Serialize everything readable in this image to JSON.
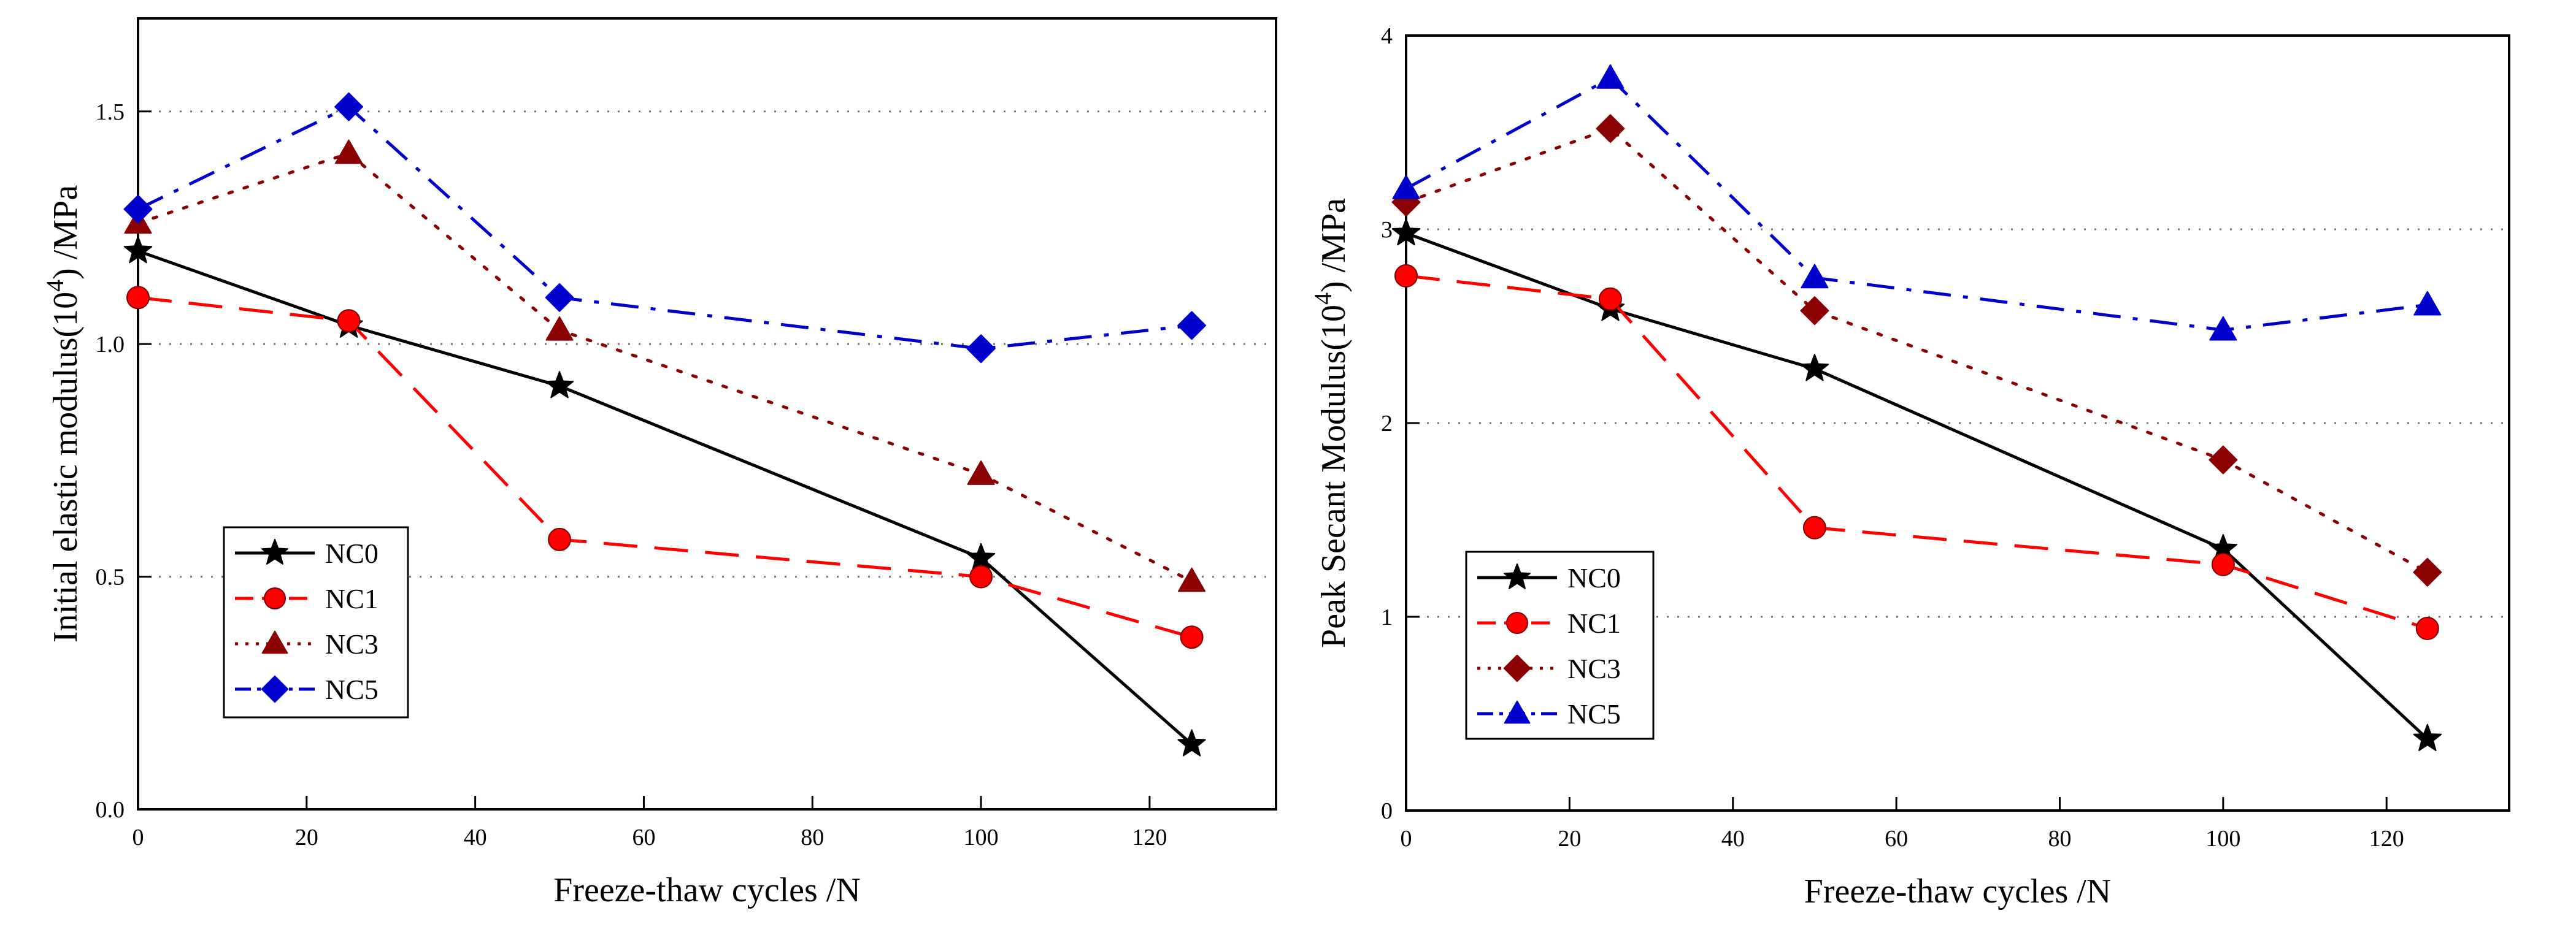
{
  "chart_data": [
    {
      "type": "line",
      "title": "",
      "xlabel": "Freeze-thaw cycles /N",
      "ylabel": "Initial elastic modulus(10⁴) /MPa",
      "ylabel_parts": {
        "pre": "Initial elastic modulus(10",
        "sup": "4",
        "post": ") /MPa"
      },
      "xlim": [
        0,
        135
      ],
      "ylim": [
        0,
        1.7
      ],
      "xticks": [
        0,
        20,
        40,
        60,
        80,
        100,
        120
      ],
      "yticks": [
        0.0,
        0.5,
        1.0,
        1.5
      ],
      "ytick_labels": [
        "0.0",
        "0.5",
        "1.0",
        "1.5"
      ],
      "grid": "horizontal dotted",
      "legend_position": "bottom-left",
      "x": [
        0,
        25,
        50,
        100,
        125
      ],
      "series": [
        {
          "name": "NC0",
          "values": [
            1.2,
            1.04,
            0.91,
            0.54,
            0.14
          ],
          "color": "#000000",
          "marker": "star",
          "dash": "solid"
        },
        {
          "name": "NC1",
          "values": [
            1.1,
            1.05,
            0.58,
            0.5,
            0.37
          ],
          "color": "#ff0000",
          "marker": "circle",
          "dash": "dash"
        },
        {
          "name": "NC3",
          "values": [
            1.26,
            1.41,
            1.03,
            0.72,
            0.49
          ],
          "color": "#8b0000",
          "marker": "triangle",
          "dash": "dot"
        },
        {
          "name": "NC5",
          "values": [
            1.29,
            1.51,
            1.1,
            0.99,
            1.04
          ],
          "color": "#0000cc",
          "marker": "diamond",
          "dash": "dashdot"
        }
      ]
    },
    {
      "type": "line",
      "title": "",
      "xlabel": "Freeze-thaw cycles /N",
      "ylabel": "Peak Secant Modulus(10⁴) /MPa",
      "ylabel_parts": {
        "pre": "Peak Secant Modulus(10",
        "sup": "4",
        "post": ") /MPa"
      },
      "xlim": [
        0,
        135
      ],
      "ylim": [
        0,
        4
      ],
      "xticks": [
        0,
        20,
        40,
        60,
        80,
        100,
        120
      ],
      "yticks": [
        0,
        1,
        2,
        3,
        4
      ],
      "ytick_labels": [
        "0",
        "1",
        "2",
        "3",
        "4"
      ],
      "grid": "horizontal dotted",
      "legend_position": "bottom-left",
      "x": [
        0,
        25,
        50,
        100,
        125
      ],
      "series": [
        {
          "name": "NC0",
          "values": [
            2.98,
            2.59,
            2.28,
            1.35,
            0.37
          ],
          "color": "#000000",
          "marker": "star",
          "dash": "solid"
        },
        {
          "name": "NC1",
          "values": [
            2.76,
            2.64,
            1.46,
            1.27,
            0.94
          ],
          "color": "#ff0000",
          "marker": "circle",
          "dash": "dash"
        },
        {
          "name": "NC3",
          "values": [
            3.14,
            3.52,
            2.58,
            1.81,
            1.23
          ],
          "color": "#8b0000",
          "marker": "diamond",
          "dash": "dot"
        },
        {
          "name": "NC5",
          "values": [
            3.21,
            3.78,
            2.75,
            2.48,
            2.61
          ],
          "color": "#0000cc",
          "marker": "triangle",
          "dash": "dashdot"
        }
      ]
    }
  ]
}
